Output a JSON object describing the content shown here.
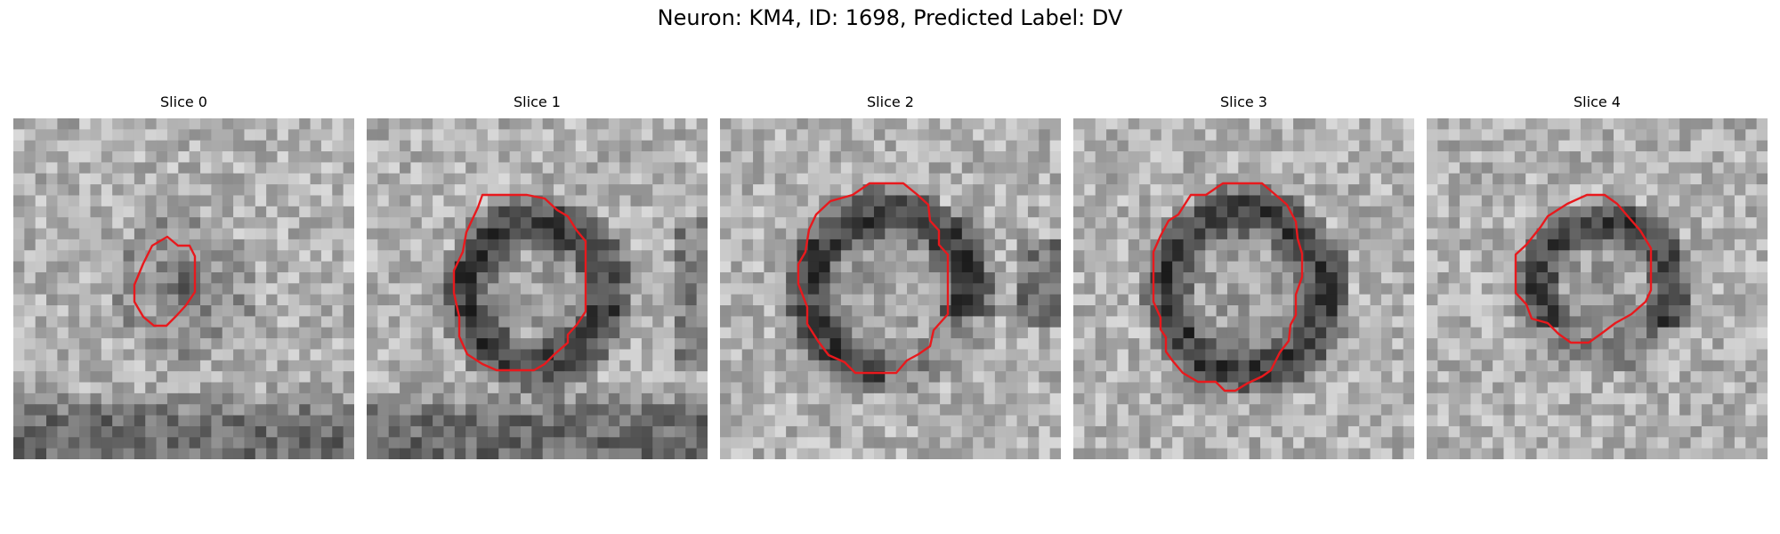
{
  "figure": {
    "title": "Neuron: KM4, ID: 1698, Predicted Label: DV"
  },
  "colors": {
    "contour": "#e8191d",
    "background": "#ffffff"
  },
  "panels": [
    {
      "title": "Slice 0"
    },
    {
      "title": "Slice 1"
    },
    {
      "title": "Slice 2"
    },
    {
      "title": "Slice 3"
    },
    {
      "title": "Slice 4"
    }
  ]
}
